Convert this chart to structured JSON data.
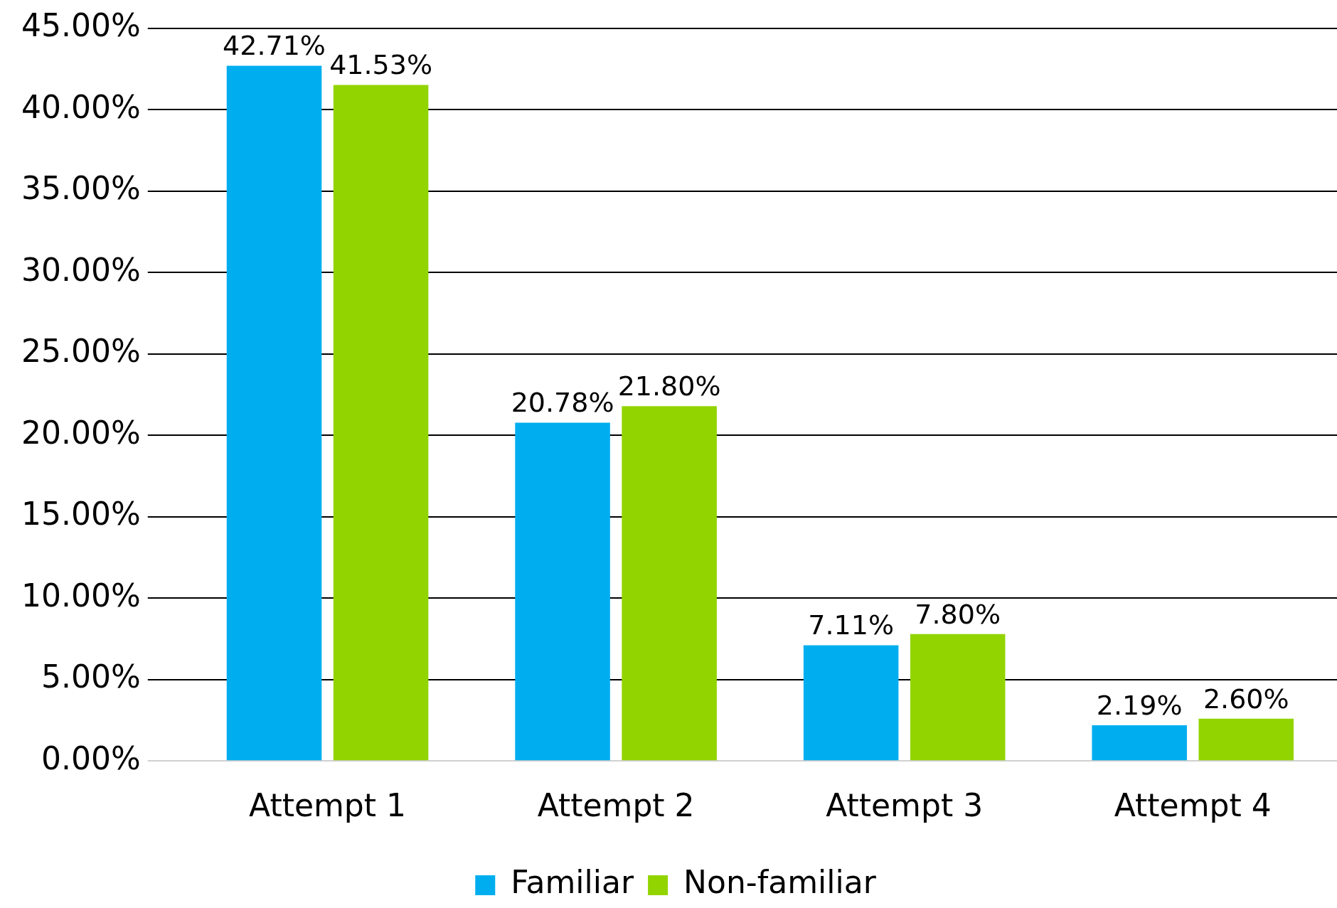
{
  "chart_data": {
    "type": "bar",
    "categories": [
      "Attempt 1",
      "Attempt 2",
      "Attempt 3",
      "Attempt 4"
    ],
    "series": [
      {
        "name": "Familiar",
        "color": "#00aeef",
        "values": [
          42.71,
          20.78,
          7.11,
          2.19
        ],
        "value_labels": [
          "42.71%",
          "20.78%",
          "7.11%",
          "2.19%"
        ]
      },
      {
        "name": "Non-familiar",
        "color": "#92d400",
        "values": [
          41.53,
          21.8,
          7.8,
          2.6
        ],
        "value_labels": [
          "41.53%",
          "21.80%",
          "7.80%",
          "2.60%"
        ]
      }
    ],
    "ylim": [
      0,
      45
    ],
    "yticks": [
      {
        "value": 0,
        "label": "0.00%"
      },
      {
        "value": 5,
        "label": "5.00%"
      },
      {
        "value": 10,
        "label": "10.00%"
      },
      {
        "value": 15,
        "label": "15.00%"
      },
      {
        "value": 20,
        "label": "20.00%"
      },
      {
        "value": 25,
        "label": "25.00%"
      },
      {
        "value": 30,
        "label": "30.00%"
      },
      {
        "value": 35,
        "label": "35.00%"
      },
      {
        "value": 40,
        "label": "40.00%"
      },
      {
        "value": 45,
        "label": "45.00%"
      }
    ],
    "grid": "y",
    "legend": "bottom"
  }
}
